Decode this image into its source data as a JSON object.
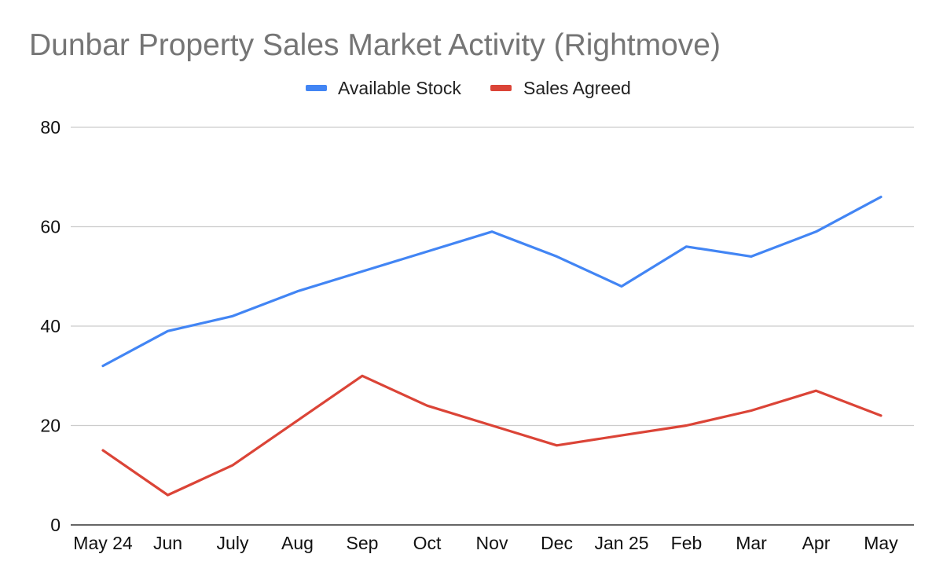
{
  "chart_data": {
    "type": "line",
    "title": "Dunbar Property Sales Market Activity (Rightmove)",
    "xlabel": "",
    "ylabel": "",
    "categories": [
      "May 24",
      "Jun",
      "July",
      "Aug",
      "Sep",
      "Oct",
      "Nov",
      "Dec",
      "Jan 25",
      "Feb",
      "Mar",
      "Apr",
      "May"
    ],
    "series": [
      {
        "name": "Available Stock",
        "color": "#4285f4",
        "values": [
          32,
          39,
          42,
          47,
          51,
          55,
          59,
          54,
          48,
          56,
          54,
          59,
          66
        ]
      },
      {
        "name": "Sales Agreed",
        "color": "#db4437",
        "values": [
          15,
          6,
          12,
          21,
          30,
          24,
          20,
          16,
          18,
          20,
          23,
          27,
          22
        ]
      }
    ],
    "ylim": [
      0,
      80
    ],
    "yticks": [
      0,
      20,
      40,
      60,
      80
    ],
    "grid": true,
    "legend": "top"
  }
}
